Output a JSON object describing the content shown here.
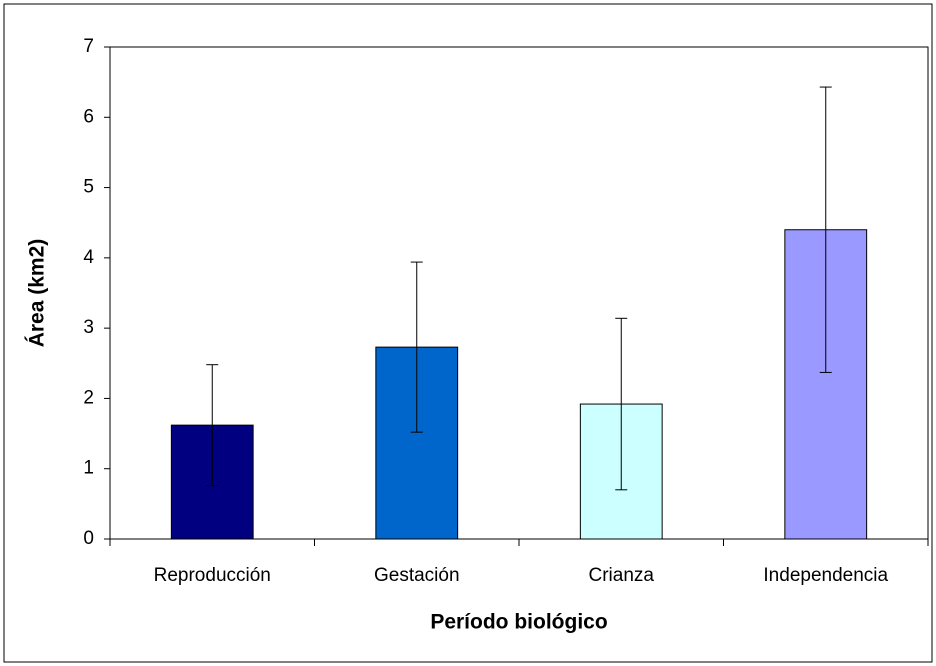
{
  "chart_data": {
    "type": "bar",
    "categories": [
      "Reproducción",
      "Gestación",
      "Crianza",
      "Independencia"
    ],
    "values": [
      1.62,
      2.73,
      1.92,
      4.4
    ],
    "errors": [
      0.86,
      1.21,
      1.22,
      2.03
    ],
    "colors": [
      "#000080",
      "#0066cc",
      "#ccffff",
      "#9999ff"
    ],
    "xlabel": "Período biológico",
    "ylabel": "Área (km2)",
    "ylim": [
      0,
      7
    ],
    "yticks": [
      0,
      1,
      2,
      3,
      4,
      5,
      6,
      7
    ],
    "grid": false
  }
}
